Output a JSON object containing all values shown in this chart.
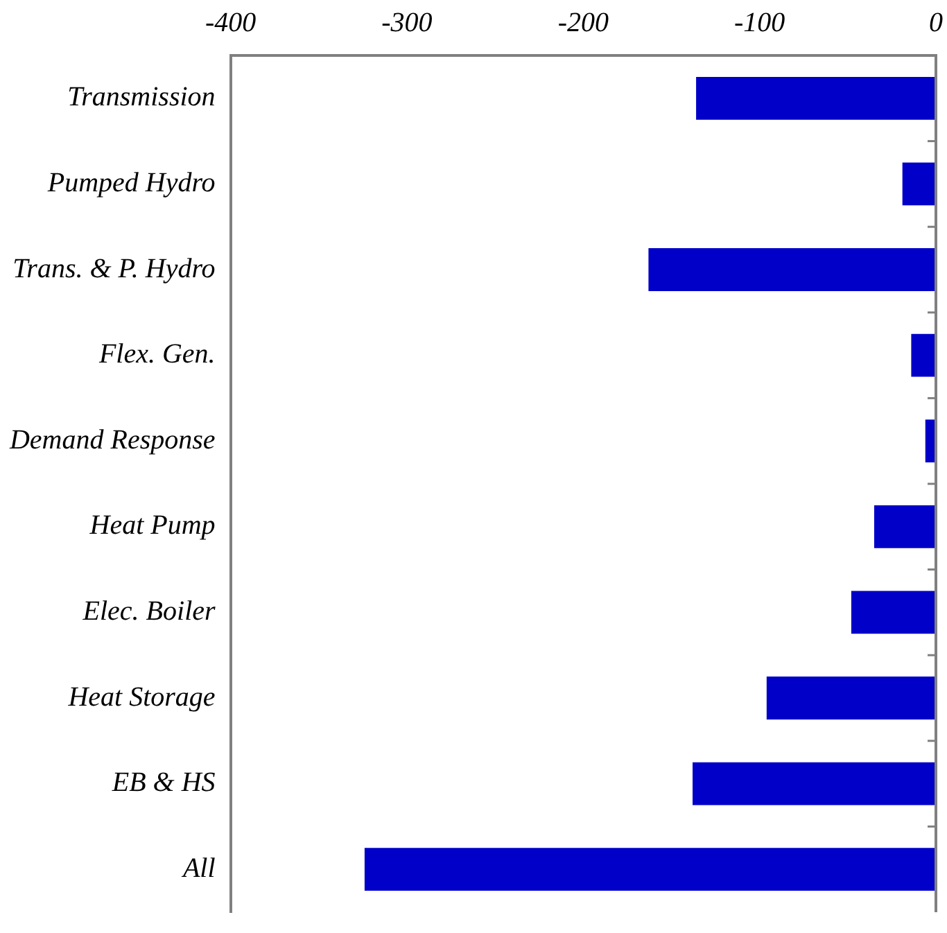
{
  "chart_data": {
    "type": "bar",
    "orientation": "horizontal",
    "categories": [
      "Transmission",
      "Pumped Hydro",
      "Trans. & P. Hydro",
      "Flex. Gen.",
      "Demand Response",
      "Heat Pump",
      "Elec. Boiler",
      "Heat Storage",
      "EB & HS",
      "All"
    ],
    "values": [
      -136,
      -19,
      -163,
      -14,
      -6,
      -35,
      -48,
      -96,
      -138,
      -324
    ],
    "color": "#0000c8",
    "xlim": [
      -400,
      0
    ],
    "xticks": [
      -400,
      -300,
      -200,
      -100,
      0
    ],
    "grid": false,
    "legend": false
  }
}
